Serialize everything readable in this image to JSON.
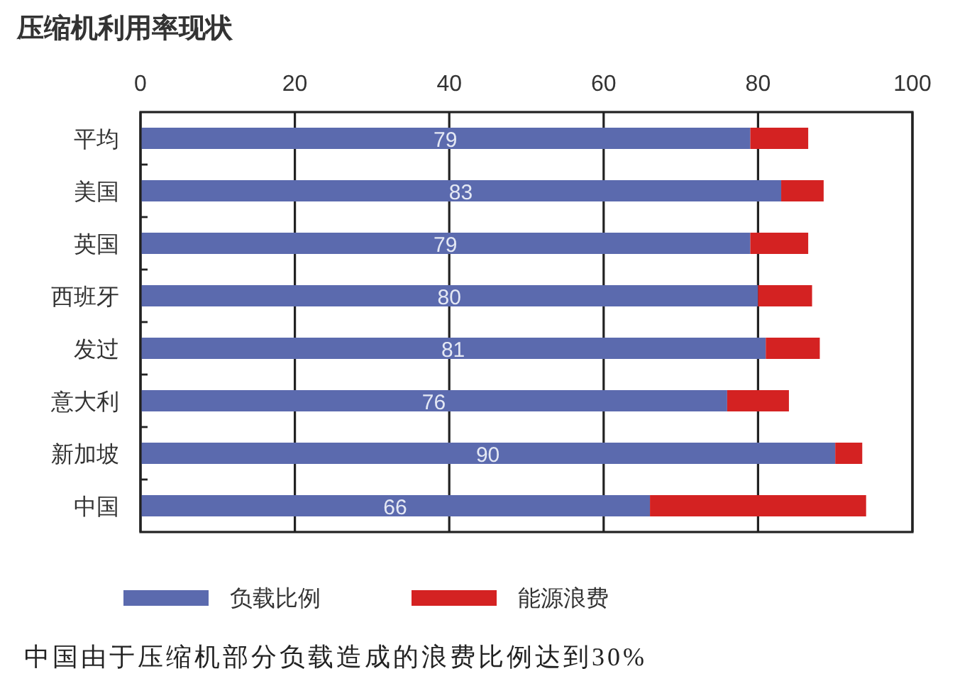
{
  "chart_data": {
    "type": "bar",
    "orientation": "horizontal",
    "stacked": true,
    "title": "压缩机利用率现状",
    "categories": [
      "平均",
      "美国",
      "英国",
      "西班牙",
      "发过",
      "意大利",
      "新加坡",
      "中国"
    ],
    "series": [
      {
        "name": "负载比例",
        "color": "#5b6aae",
        "values": [
          79,
          83,
          79,
          80,
          81,
          76,
          90,
          66
        ],
        "value_labels": [
          "79",
          "83",
          "79",
          "80",
          "81",
          "76",
          "90",
          "66"
        ]
      },
      {
        "name": "能源浪费",
        "color": "#d42222",
        "values": [
          7.5,
          5.5,
          7.5,
          7,
          7,
          8,
          3.5,
          28
        ]
      }
    ],
    "xlim": [
      0,
      100
    ],
    "xticks": [
      0,
      20,
      40,
      60,
      80,
      100
    ],
    "grid": "x",
    "legend": "bottom",
    "annotations": [
      "中国由于压缩机部分负载造成的浪费比例达到30%"
    ]
  }
}
